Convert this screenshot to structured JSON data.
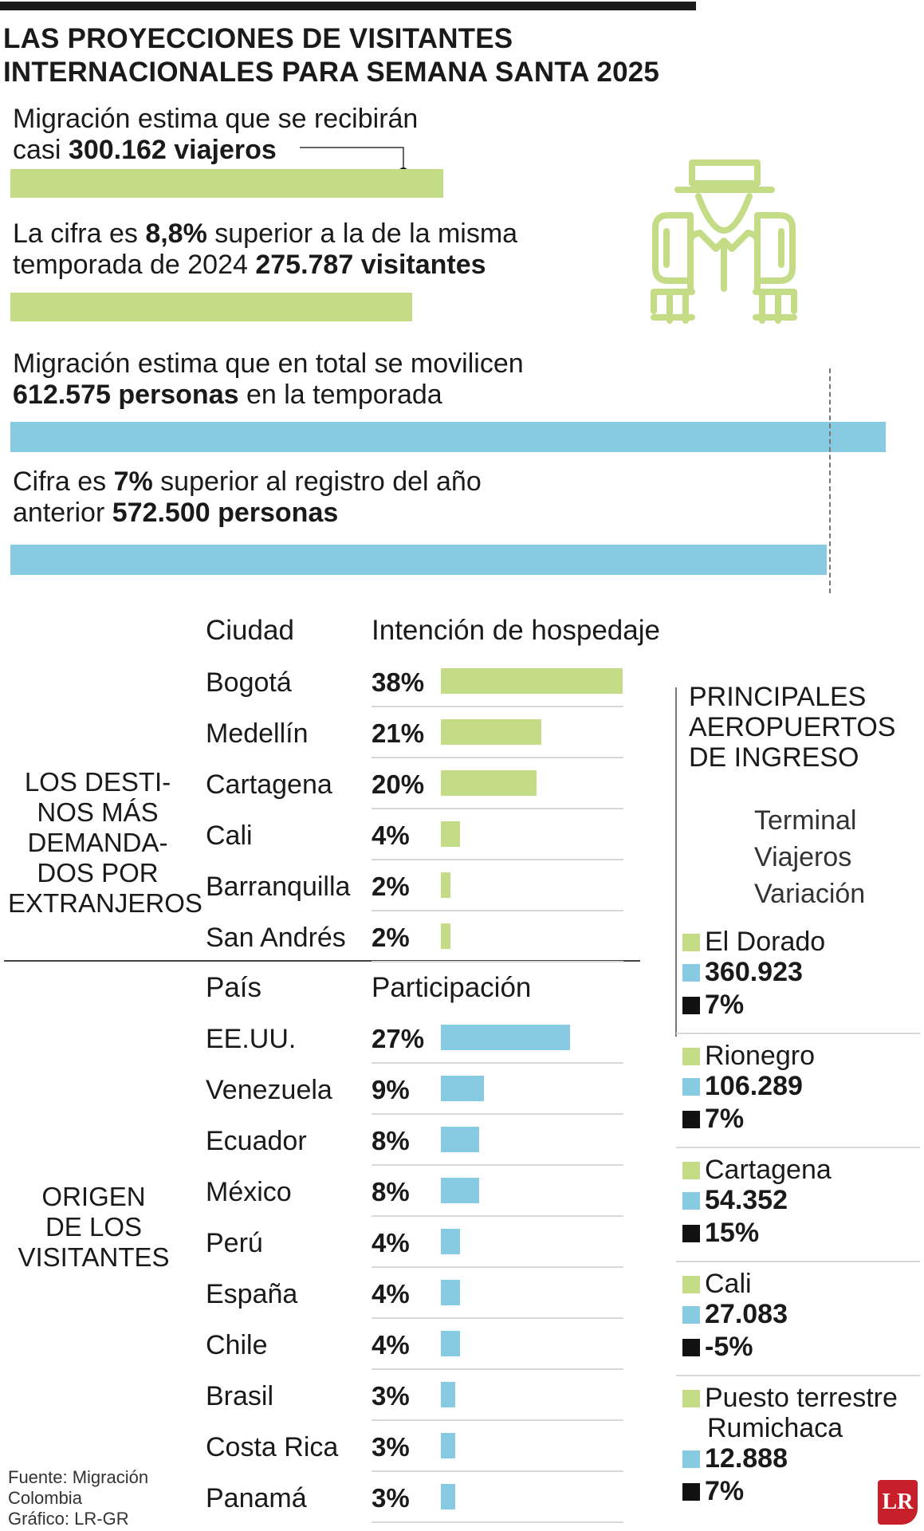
{
  "title": {
    "line1": "LAS PROYECCIONES DE VISITANTES",
    "line2": "INTERNACIONALES PARA SEMANA SANTA 2025"
  },
  "stats": [
    {
      "line1": "Migración estima que se recibirán",
      "line2_pre": "casi ",
      "line2_bold": "300.162 viajeros",
      "line2_post": ""
    },
    {
      "line1_pre": "La cifra es ",
      "line1_bold": "8,8%",
      "line1_post": " superior a la de la misma",
      "line2_pre": "temporada de 2024 ",
      "line2_bold": "275.787 visitantes"
    },
    {
      "line1": "Migración estima que en total se movilicen",
      "line2_bold": "612.575 personas",
      "line2_post": " en la temporada"
    },
    {
      "line1_pre": "Cifra es ",
      "line1_bold": "7%",
      "line1_post": " superior al registro del año",
      "line2_pre": "anterior ",
      "line2_bold": "572.500 personas"
    }
  ],
  "colors": {
    "green": "#c5dc87",
    "blue": "#86cbe2",
    "black": "#111111",
    "logo_red": "#c8202b"
  },
  "icon": "traveler-with-backpack-icon",
  "chart_data": [
    {
      "type": "bar",
      "orientation": "horizontal",
      "values": [
        300162,
        275787
      ],
      "unit": "viajeros"
    },
    {
      "type": "bar",
      "orientation": "horizontal",
      "values": [
        612575,
        572500
      ],
      "unit": "personas"
    },
    {
      "type": "bar",
      "orientation": "horizontal",
      "group_label": "LOS DESTINOS MÁS DEMANDADOS POR EXTRANJEROS",
      "category_header": "Ciudad",
      "value_header": "Intención de hospedaje",
      "categories": [
        "Bogotá",
        "Medellín",
        "Cartagena",
        "Cali",
        "Barranquilla",
        "San Andrés"
      ],
      "values": [
        38,
        21,
        20,
        4,
        2,
        2
      ],
      "value_labels": [
        "38%",
        "21%",
        "20%",
        "4%",
        "2%",
        "2%"
      ],
      "unit": "%",
      "color": "#c5dc87"
    },
    {
      "type": "bar",
      "orientation": "horizontal",
      "group_label": "ORIGEN DE LOS VISITANTES",
      "category_header": "País",
      "value_header": "Participación",
      "categories": [
        "EE.UU.",
        "Venezuela",
        "Ecuador",
        "México",
        "Perú",
        "España",
        "Chile",
        "Brasil",
        "Costa Rica",
        "Panamá"
      ],
      "values": [
        27,
        9,
        8,
        8,
        4,
        4,
        4,
        3,
        3,
        3
      ],
      "value_labels": [
        "27%",
        "9%",
        "8%",
        "8%",
        "4%",
        "4%",
        "4%",
        "3%",
        "3%",
        "3%"
      ],
      "unit": "%",
      "color": "#86cbe2"
    }
  ],
  "airports": {
    "title_lines": [
      "PRINCIPALES",
      "AEROPUERTOS",
      "DE INGRESO"
    ],
    "legend": [
      "Terminal",
      "Viajeros",
      "Variación"
    ],
    "items": [
      {
        "name_lines": [
          "El Dorado"
        ],
        "travelers": "360.923",
        "variation": "7%"
      },
      {
        "name_lines": [
          "Rionegro"
        ],
        "travelers": "106.289",
        "variation": "7%"
      },
      {
        "name_lines": [
          "Cartagena"
        ],
        "travelers": "54.352",
        "variation": "15%"
      },
      {
        "name_lines": [
          "Cali"
        ],
        "travelers": "27.083",
        "variation": "-5%"
      },
      {
        "name_lines": [
          "Puesto terrestre",
          "Rumichaca"
        ],
        "travelers": "12.888",
        "variation": "7%"
      }
    ]
  },
  "side_labels": {
    "destinations": [
      "LOS DESTI-",
      "NOS MÁS",
      "DEMANDA-",
      "DOS POR",
      "EXTRANJEROS"
    ],
    "origin": [
      "ORIGEN",
      "DE LOS",
      "VISITANTES"
    ]
  },
  "source": {
    "line1": "Fuente: Migración",
    "line2": "Colombia",
    "line3": "Gráfico: LR-GR"
  },
  "logo": "LR"
}
